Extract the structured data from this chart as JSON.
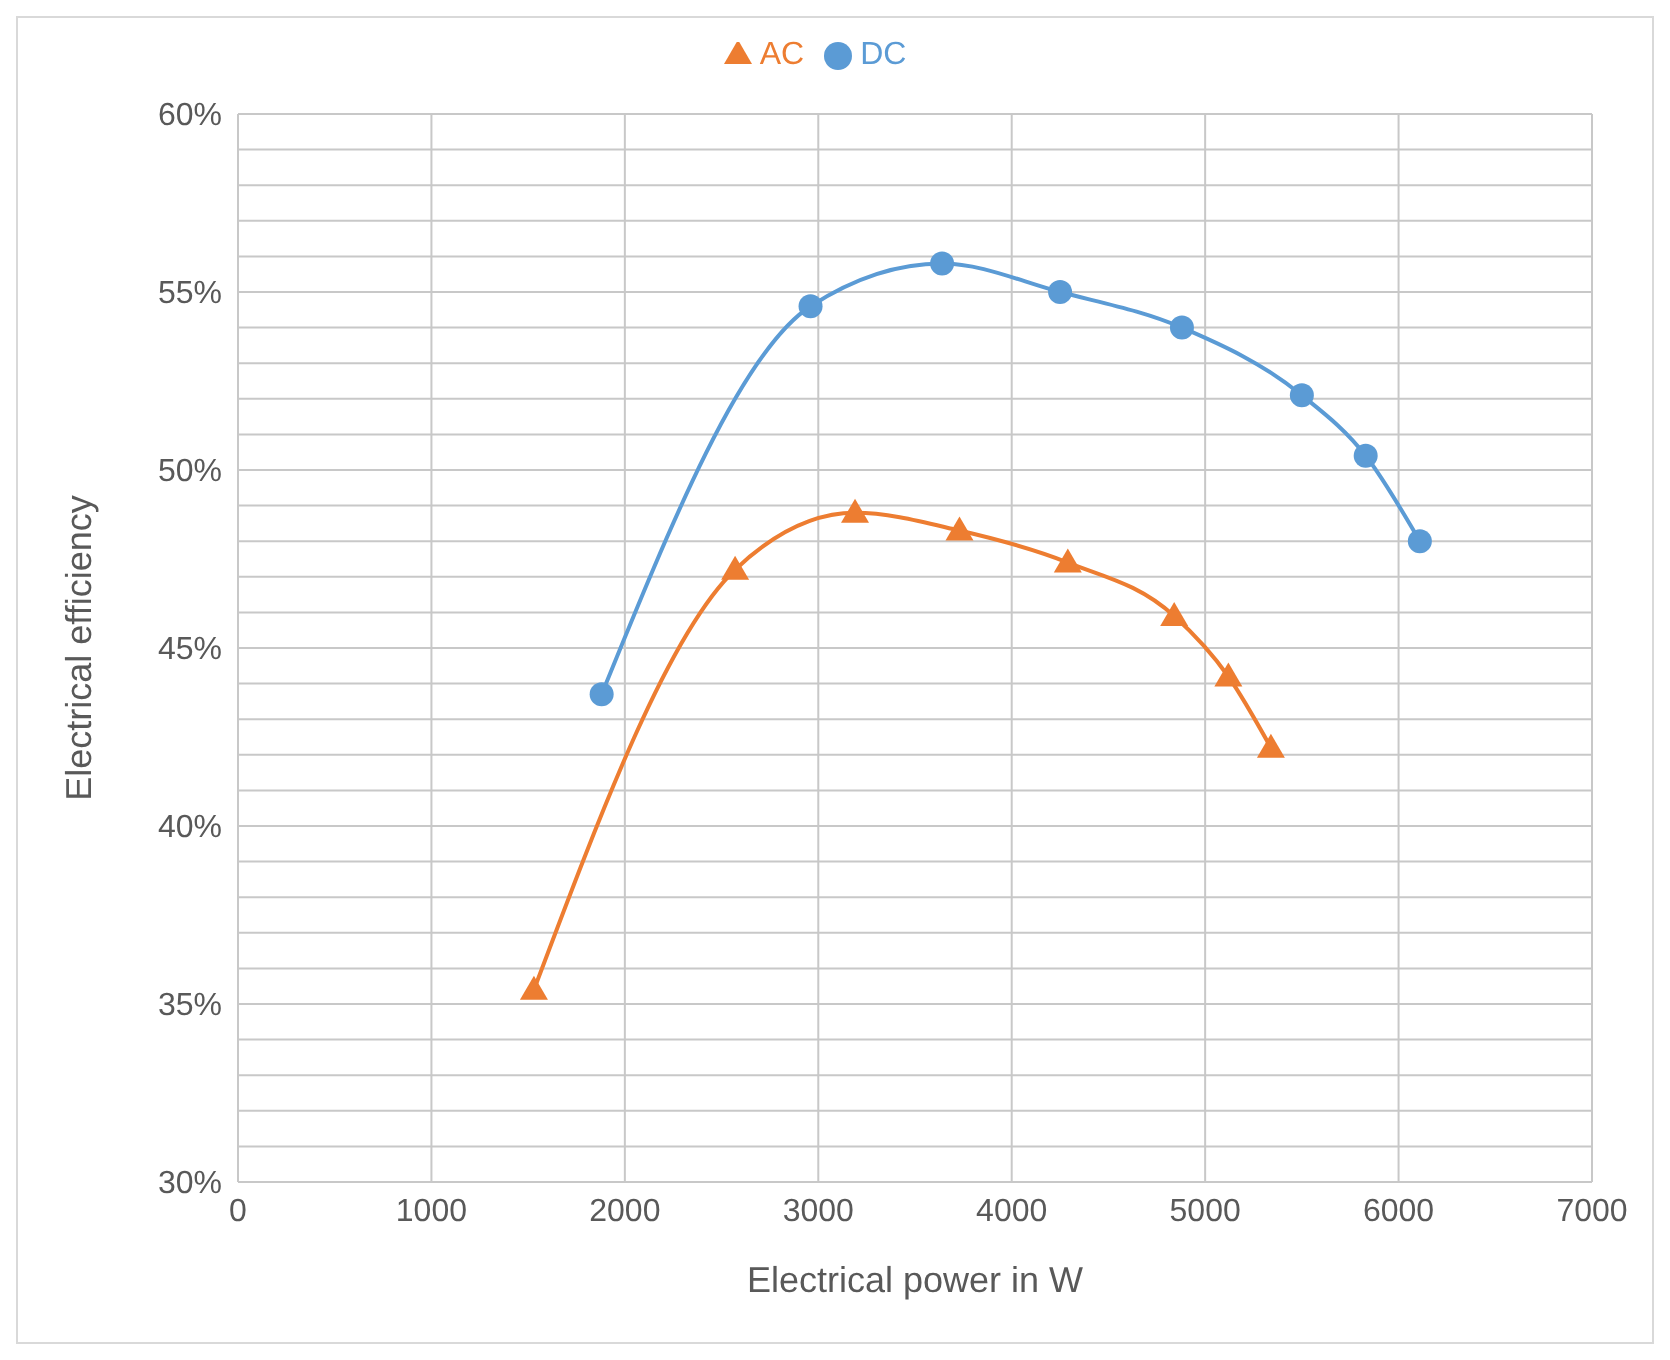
{
  "chart_data": {
    "type": "line",
    "xlabel": "Electrical power in W",
    "ylabel": "Electrical efficiency",
    "xlim": [
      0,
      7000
    ],
    "xticks": [
      0,
      1000,
      2000,
      3000,
      4000,
      5000,
      6000,
      7000
    ],
    "ylim": [
      30,
      60
    ],
    "yticks": [
      {
        "value": 30,
        "label": "30%"
      },
      {
        "value": 31,
        "label": null
      },
      {
        "value": 32,
        "label": null
      },
      {
        "value": 33,
        "label": null
      },
      {
        "value": 34,
        "label": null
      },
      {
        "value": 35,
        "label": "35%"
      },
      {
        "value": 36,
        "label": null
      },
      {
        "value": 37,
        "label": null
      },
      {
        "value": 38,
        "label": null
      },
      {
        "value": 39,
        "label": null
      },
      {
        "value": 40,
        "label": "40%"
      },
      {
        "value": 41,
        "label": null
      },
      {
        "value": 42,
        "label": null
      },
      {
        "value": 43,
        "label": null
      },
      {
        "value": 44,
        "label": null
      },
      {
        "value": 45,
        "label": "45%"
      },
      {
        "value": 46,
        "label": null
      },
      {
        "value": 47,
        "label": null
      },
      {
        "value": 48,
        "label": null
      },
      {
        "value": 49,
        "label": null
      },
      {
        "value": 50,
        "label": "50%"
      },
      {
        "value": 51,
        "label": null
      },
      {
        "value": 52,
        "label": null
      },
      {
        "value": 53,
        "label": null
      },
      {
        "value": 54,
        "label": null
      },
      {
        "value": 55,
        "label": "55%"
      },
      {
        "value": 56,
        "label": null
      },
      {
        "value": 57,
        "label": null
      },
      {
        "value": 58,
        "label": null
      },
      {
        "value": 59,
        "label": null
      },
      {
        "value": 60,
        "label": "60%"
      }
    ],
    "grid": true,
    "legend": "top",
    "line_style": "solid",
    "series": [
      {
        "name": "DC",
        "color": "#5b9bd5",
        "marker": "circle",
        "x": [
          1880,
          2960,
          3640,
          4250,
          4880,
          5500,
          5830,
          6110
        ],
        "values": [
          43.7,
          54.6,
          55.8,
          55.0,
          54.0,
          52.1,
          50.4,
          48.0
        ]
      },
      {
        "name": "AC",
        "color": "#ed7d31",
        "marker": "triangle",
        "x": [
          1530,
          2570,
          3190,
          3730,
          4290,
          4840,
          5120,
          5340
        ],
        "values": [
          35.4,
          47.2,
          48.8,
          48.3,
          47.4,
          45.9,
          44.2,
          42.2
        ]
      }
    ]
  }
}
